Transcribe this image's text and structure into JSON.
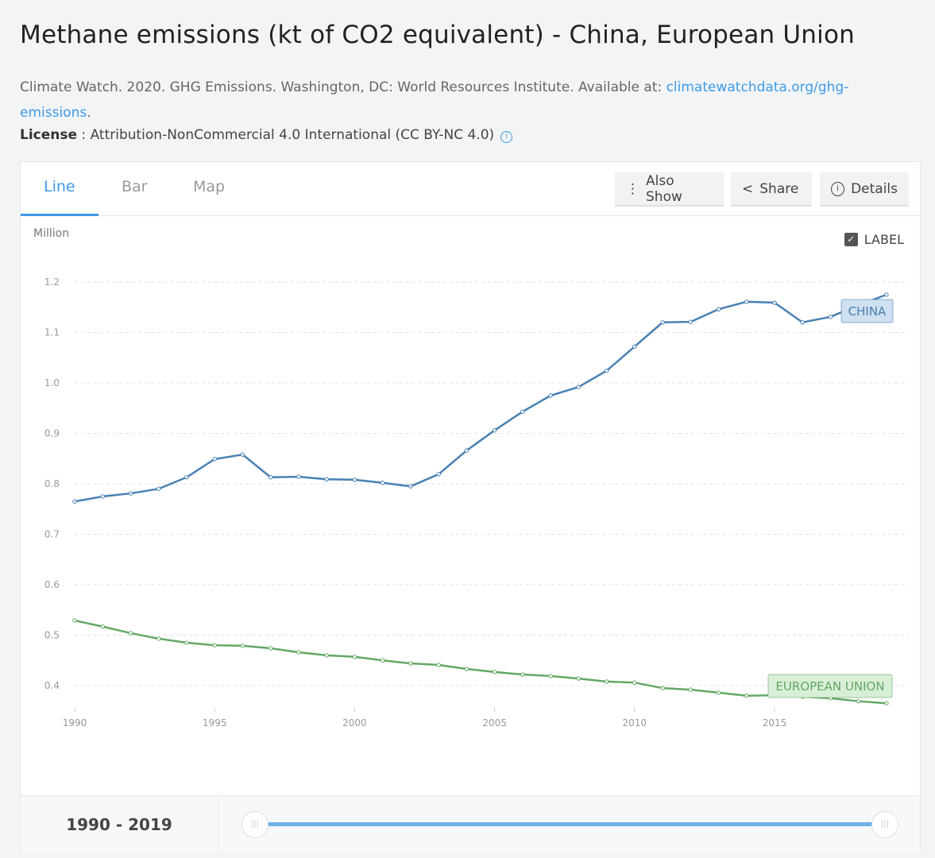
{
  "title": "Methane emissions (kt of CO2 equivalent) - China, European Union",
  "source_text": "Climate Watch. 2020. GHG Emissions. Washington, DC: World Resources Institute. Available at: ",
  "source_link": "climatewatchdata.org/ghg-emissions",
  "source_end": ".",
  "license_label": "License",
  "license_text": " : Attribution-NonCommercial 4.0 International (CC BY-NC 4.0)",
  "tabs": [
    {
      "label": "Line",
      "active": true
    },
    {
      "label": "Bar"
    },
    {
      "label": "Map"
    }
  ],
  "buttons": {
    "also_show": "Also Show",
    "share": "Share",
    "details": "Details"
  },
  "label_toggle": {
    "text": "LABEL",
    "checked": true
  },
  "range_text": "1990 - 2019",
  "slider": {
    "min": 1990,
    "max": 2019,
    "start": 1990,
    "end": 2019
  },
  "chart_data": {
    "type": "line",
    "ylabel": "Million",
    "ylim": [
      0.4,
      1.2
    ],
    "yticks": [
      "0.4",
      "0.5",
      "0.6",
      "0.7",
      "0.8",
      "0.9",
      "1.0",
      "1.1",
      "1.2"
    ],
    "xticks": [
      "1990",
      "1995",
      "2000",
      "2005",
      "2010",
      "2015"
    ],
    "grid": true,
    "x": [
      1990,
      1991,
      1992,
      1993,
      1994,
      1995,
      1996,
      1997,
      1998,
      1999,
      2000,
      2001,
      2002,
      2003,
      2004,
      2005,
      2006,
      2007,
      2008,
      2009,
      2010,
      2011,
      2012,
      2013,
      2014,
      2015,
      2016,
      2017,
      2018,
      2019
    ],
    "series": [
      {
        "name": "CHINA",
        "color": "#4a80b3",
        "label_bg": "#cfe0f0",
        "values": [
          0.765,
          0.775,
          0.781,
          0.79,
          0.813,
          0.849,
          0.858,
          0.813,
          0.814,
          0.809,
          0.808,
          0.802,
          0.795,
          0.819,
          0.866,
          0.906,
          0.943,
          0.975,
          0.992,
          1.024,
          1.072,
          1.12,
          1.121,
          1.146,
          1.161,
          1.159,
          1.12,
          1.131,
          1.154,
          1.175
        ]
      },
      {
        "name": "EUROPEAN UNION",
        "color": "#63a865",
        "label_bg": "#d9eed7",
        "values": [
          0.529,
          0.517,
          0.504,
          0.493,
          0.485,
          0.48,
          0.479,
          0.474,
          0.466,
          0.46,
          0.457,
          0.45,
          0.444,
          0.441,
          0.433,
          0.427,
          0.422,
          0.419,
          0.414,
          0.408,
          0.406,
          0.395,
          0.392,
          0.386,
          0.38,
          0.381,
          0.378,
          0.375,
          0.369,
          0.365
        ]
      }
    ]
  }
}
